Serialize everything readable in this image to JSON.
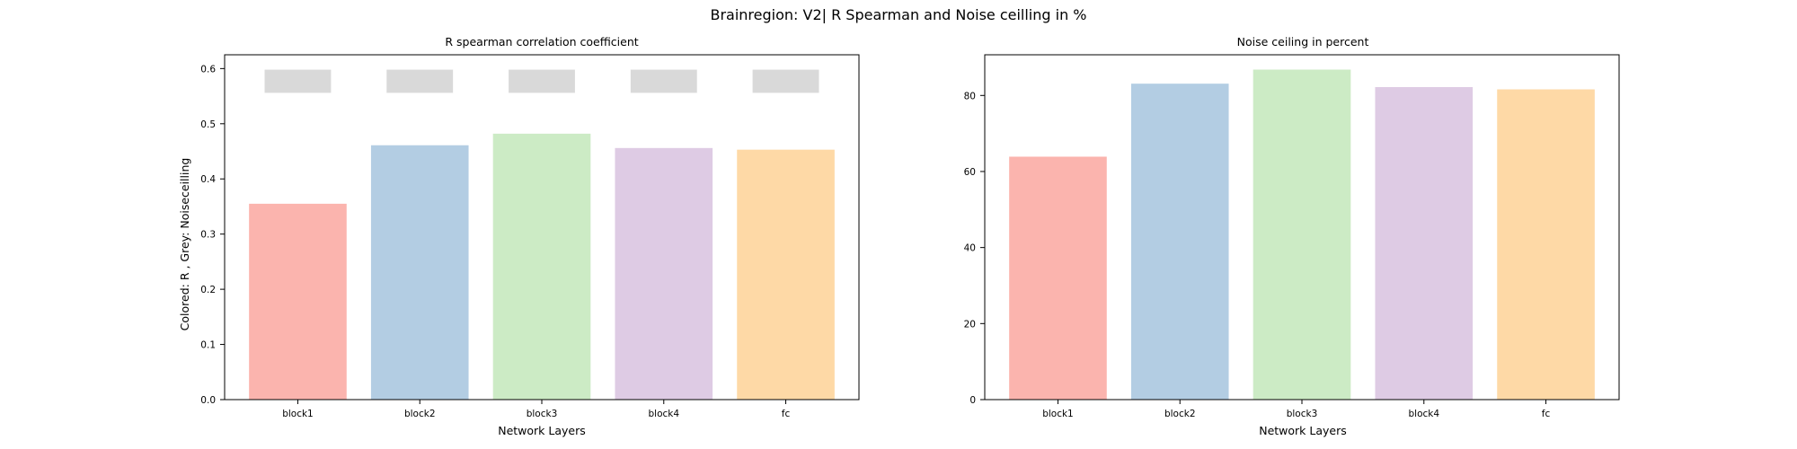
{
  "figure": {
    "suptitle": "Brainregion: V2| R Spearman and Noise ceilling in %"
  },
  "chart_data": [
    {
      "type": "bar",
      "title": "R spearman correlation coefficient",
      "xlabel": "Network Layers",
      "ylabel": "Colored: R , Grey: Noiseceilling",
      "categories": [
        "block1",
        "block2",
        "block3",
        "block4",
        "fc"
      ],
      "values": [
        0.355,
        0.461,
        0.482,
        0.456,
        0.453
      ],
      "noise_ceiling": {
        "lower": [
          0.556,
          0.556,
          0.556,
          0.556,
          0.556
        ],
        "upper": [
          0.598,
          0.598,
          0.598,
          0.598,
          0.598
        ],
        "color": "#d9d9d9"
      },
      "ylim": [
        0,
        0.625
      ],
      "yticks": [
        0.0,
        0.1,
        0.2,
        0.3,
        0.4,
        0.5,
        0.6
      ],
      "ytick_labels": [
        "0.0",
        "0.1",
        "0.2",
        "0.3",
        "0.4",
        "0.5",
        "0.6"
      ],
      "colors": [
        "#fbb4ae",
        "#b3cde3",
        "#ccebc5",
        "#decbe4",
        "#fed9a6"
      ],
      "grid": false
    },
    {
      "type": "bar",
      "title": "Noise ceiling in percent",
      "xlabel": "Network Layers",
      "ylabel": "",
      "categories": [
        "block1",
        "block2",
        "block3",
        "block4",
        "fc"
      ],
      "values": [
        63.9,
        83.1,
        86.8,
        82.2,
        81.6
      ],
      "ylim": [
        0,
        90.7
      ],
      "yticks": [
        0,
        20,
        40,
        60,
        80
      ],
      "ytick_labels": [
        "0",
        "20",
        "40",
        "60",
        "80"
      ],
      "colors": [
        "#fbb4ae",
        "#b3cde3",
        "#ccebc5",
        "#decbe4",
        "#fed9a6"
      ],
      "grid": false
    }
  ]
}
